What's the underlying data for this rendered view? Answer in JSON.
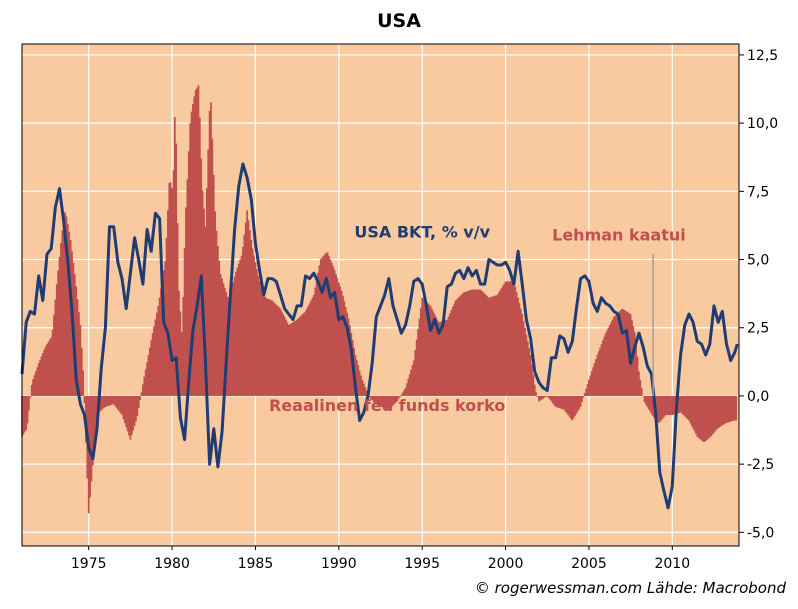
{
  "title": "USA",
  "copyright": "© rogerwessman.com Lähde: Macrobond",
  "chart_data": {
    "type": "bar+line",
    "title": "USA",
    "x_range": [
      1971,
      2014
    ],
    "ylim": [
      -5.5,
      12.9
    ],
    "x_ticks": [
      {
        "value": 1975,
        "label": "1975"
      },
      {
        "value": 1980,
        "label": "1980"
      },
      {
        "value": 1985,
        "label": "1985"
      },
      {
        "value": 1990,
        "label": "1990"
      },
      {
        "value": 1995,
        "label": "1995"
      },
      {
        "value": 2000,
        "label": "2000"
      },
      {
        "value": 2005,
        "label": "2005"
      },
      {
        "value": 2010,
        "label": "2010"
      }
    ],
    "y_ticks": [
      {
        "value": 12.5,
        "label": "12,5"
      },
      {
        "value": 10,
        "label": "10,0"
      },
      {
        "value": 7.5,
        "label": "7,5"
      },
      {
        "value": 5,
        "label": "5,0"
      },
      {
        "value": 2.5,
        "label": "2,5"
      },
      {
        "value": 0,
        "label": "0,0"
      },
      {
        "value": -2.5,
        "label": "-2,5"
      },
      {
        "value": -5,
        "label": "-5,0"
      }
    ],
    "background_color": "#F9C9A0",
    "bar_color": "#C0504D",
    "line_color": "#1F3D73",
    "series": [
      {
        "name": "Reaalinen fed funds korko",
        "kind": "area-bars",
        "points": [
          [
            1971.0,
            -1.5
          ],
          [
            1971.3,
            -1.2
          ],
          [
            1971.6,
            0.5
          ],
          [
            1972.0,
            1.2
          ],
          [
            1972.4,
            1.8
          ],
          [
            1972.8,
            2.2
          ],
          [
            1973.1,
            4.2
          ],
          [
            1973.4,
            6.0
          ],
          [
            1973.6,
            6.8
          ],
          [
            1973.9,
            5.8
          ],
          [
            1974.2,
            4.3
          ],
          [
            1974.5,
            2.6
          ],
          [
            1974.7,
            0.6
          ],
          [
            1974.85,
            -2.0
          ],
          [
            1975.0,
            -4.3
          ],
          [
            1975.3,
            -2.2
          ],
          [
            1975.6,
            -0.6
          ],
          [
            1976.0,
            -0.4
          ],
          [
            1976.5,
            -0.3
          ],
          [
            1977.0,
            -0.7
          ],
          [
            1977.5,
            -1.6
          ],
          [
            1977.9,
            -0.8
          ],
          [
            1978.3,
            0.6
          ],
          [
            1978.8,
            2.2
          ],
          [
            1979.2,
            3.4
          ],
          [
            1979.6,
            5.0
          ],
          [
            1979.85,
            8.0
          ],
          [
            1980.05,
            7.5
          ],
          [
            1980.2,
            11.0
          ],
          [
            1980.4,
            4.0
          ],
          [
            1980.6,
            2.2
          ],
          [
            1980.8,
            6.5
          ],
          [
            1981.1,
            10.2
          ],
          [
            1981.4,
            11.2
          ],
          [
            1981.6,
            11.4
          ],
          [
            1981.8,
            7.8
          ],
          [
            1982.0,
            6.2
          ],
          [
            1982.3,
            11.3
          ],
          [
            1982.6,
            6.5
          ],
          [
            1982.9,
            4.5
          ],
          [
            1983.4,
            3.5
          ],
          [
            1983.8,
            4.5
          ],
          [
            1984.2,
            5.2
          ],
          [
            1984.5,
            6.8
          ],
          [
            1984.8,
            5.5
          ],
          [
            1985.2,
            4.3
          ],
          [
            1985.6,
            3.6
          ],
          [
            1986.0,
            3.5
          ],
          [
            1986.5,
            3.2
          ],
          [
            1987.0,
            2.6
          ],
          [
            1987.5,
            2.8
          ],
          [
            1988.0,
            3.1
          ],
          [
            1988.5,
            3.7
          ],
          [
            1988.9,
            5.0
          ],
          [
            1989.3,
            5.3
          ],
          [
            1989.7,
            4.7
          ],
          [
            1990.2,
            3.8
          ],
          [
            1990.6,
            2.8
          ],
          [
            1991.0,
            1.5
          ],
          [
            1991.4,
            0.6
          ],
          [
            1991.8,
            0.0
          ],
          [
            1992.2,
            -0.3
          ],
          [
            1992.6,
            -0.4
          ],
          [
            1993.0,
            -0.5
          ],
          [
            1993.5,
            -0.2
          ],
          [
            1994.0,
            0.3
          ],
          [
            1994.5,
            1.3
          ],
          [
            1995.0,
            3.6
          ],
          [
            1995.5,
            3.3
          ],
          [
            1996.0,
            2.7
          ],
          [
            1996.5,
            2.8
          ],
          [
            1997.0,
            3.5
          ],
          [
            1997.5,
            3.8
          ],
          [
            1998.0,
            3.9
          ],
          [
            1998.5,
            3.9
          ],
          [
            1999.0,
            3.6
          ],
          [
            1999.5,
            3.7
          ],
          [
            2000.0,
            4.2
          ],
          [
            2000.5,
            4.2
          ],
          [
            2001.0,
            3.0
          ],
          [
            2001.5,
            1.5
          ],
          [
            2001.8,
            0.2
          ],
          [
            2002.0,
            -0.2
          ],
          [
            2002.5,
            0.0
          ],
          [
            2003.0,
            -0.4
          ],
          [
            2003.5,
            -0.5
          ],
          [
            2004.0,
            -0.9
          ],
          [
            2004.5,
            -0.4
          ],
          [
            2005.0,
            0.6
          ],
          [
            2005.5,
            1.5
          ],
          [
            2006.0,
            2.3
          ],
          [
            2006.5,
            2.9
          ],
          [
            2007.0,
            3.2
          ],
          [
            2007.5,
            3.0
          ],
          [
            2007.8,
            2.2
          ],
          [
            2008.0,
            0.9
          ],
          [
            2008.3,
            -0.2
          ],
          [
            2008.6,
            -0.5
          ],
          [
            2008.9,
            -0.8
          ],
          [
            2009.2,
            -1.0
          ],
          [
            2009.6,
            -0.7
          ],
          [
            2010.0,
            -0.7
          ],
          [
            2010.5,
            -0.6
          ],
          [
            2011.0,
            -0.9
          ],
          [
            2011.5,
            -1.5
          ],
          [
            2011.9,
            -1.7
          ],
          [
            2012.3,
            -1.5
          ],
          [
            2012.7,
            -1.2
          ],
          [
            2013.2,
            -1.0
          ],
          [
            2013.7,
            -0.9
          ],
          [
            2013.9,
            -0.9
          ]
        ]
      },
      {
        "name": "USA BKT, % v/v",
        "kind": "line",
        "points": [
          [
            1971.0,
            0.8
          ],
          [
            1971.25,
            2.7
          ],
          [
            1971.5,
            3.1
          ],
          [
            1971.75,
            3.0
          ],
          [
            1972.0,
            4.4
          ],
          [
            1972.25,
            3.5
          ],
          [
            1972.5,
            5.2
          ],
          [
            1972.75,
            5.4
          ],
          [
            1973.0,
            6.9
          ],
          [
            1973.25,
            7.6
          ],
          [
            1973.5,
            6.4
          ],
          [
            1973.75,
            4.9
          ],
          [
            1974.0,
            3.1
          ],
          [
            1974.25,
            0.6
          ],
          [
            1974.5,
            -0.3
          ],
          [
            1974.75,
            -0.7
          ],
          [
            1975.0,
            -1.9
          ],
          [
            1975.25,
            -2.3
          ],
          [
            1975.5,
            -1.2
          ],
          [
            1975.75,
            1.0
          ],
          [
            1976.0,
            2.5
          ],
          [
            1976.25,
            6.2
          ],
          [
            1976.5,
            6.2
          ],
          [
            1976.75,
            4.9
          ],
          [
            1977.0,
            4.3
          ],
          [
            1977.25,
            3.2
          ],
          [
            1977.5,
            4.5
          ],
          [
            1977.75,
            5.8
          ],
          [
            1978.0,
            5.0
          ],
          [
            1978.25,
            4.1
          ],
          [
            1978.5,
            6.1
          ],
          [
            1978.75,
            5.3
          ],
          [
            1979.0,
            6.7
          ],
          [
            1979.25,
            6.5
          ],
          [
            1979.5,
            2.7
          ],
          [
            1979.75,
            2.3
          ],
          [
            1980.0,
            1.3
          ],
          [
            1980.25,
            1.4
          ],
          [
            1980.5,
            -0.8
          ],
          [
            1980.75,
            -1.6
          ],
          [
            1981.0,
            0.5
          ],
          [
            1981.25,
            2.4
          ],
          [
            1981.5,
            3.3
          ],
          [
            1981.75,
            4.4
          ],
          [
            1982.0,
            1.3
          ],
          [
            1982.25,
            -2.5
          ],
          [
            1982.5,
            -1.2
          ],
          [
            1982.75,
            -2.6
          ],
          [
            1983.0,
            -1.3
          ],
          [
            1983.25,
            1.3
          ],
          [
            1983.5,
            3.7
          ],
          [
            1983.75,
            6.1
          ],
          [
            1984.0,
            7.7
          ],
          [
            1984.25,
            8.5
          ],
          [
            1984.5,
            8.0
          ],
          [
            1984.75,
            7.2
          ],
          [
            1985.0,
            5.6
          ],
          [
            1985.25,
            4.6
          ],
          [
            1985.5,
            3.7
          ],
          [
            1985.75,
            4.3
          ],
          [
            1986.0,
            4.3
          ],
          [
            1986.25,
            4.2
          ],
          [
            1986.5,
            3.7
          ],
          [
            1986.75,
            3.2
          ],
          [
            1987.0,
            3.0
          ],
          [
            1987.25,
            2.8
          ],
          [
            1987.5,
            3.3
          ],
          [
            1987.75,
            3.3
          ],
          [
            1988.0,
            4.4
          ],
          [
            1988.25,
            4.3
          ],
          [
            1988.5,
            4.5
          ],
          [
            1988.75,
            4.2
          ],
          [
            1989.0,
            3.8
          ],
          [
            1989.25,
            4.3
          ],
          [
            1989.5,
            3.6
          ],
          [
            1989.75,
            3.8
          ],
          [
            1990.0,
            2.8
          ],
          [
            1990.25,
            2.9
          ],
          [
            1990.5,
            2.5
          ],
          [
            1990.75,
            1.7
          ],
          [
            1991.0,
            0.3
          ],
          [
            1991.25,
            -0.9
          ],
          [
            1991.5,
            -0.6
          ],
          [
            1991.75,
            0.0
          ],
          [
            1992.0,
            1.2
          ],
          [
            1992.25,
            2.9
          ],
          [
            1992.5,
            3.3
          ],
          [
            1992.75,
            3.7
          ],
          [
            1993.0,
            4.3
          ],
          [
            1993.25,
            3.3
          ],
          [
            1993.5,
            2.8
          ],
          [
            1993.75,
            2.3
          ],
          [
            1994.0,
            2.6
          ],
          [
            1994.25,
            3.3
          ],
          [
            1994.5,
            4.2
          ],
          [
            1994.75,
            4.3
          ],
          [
            1995.0,
            4.1
          ],
          [
            1995.25,
            3.3
          ],
          [
            1995.5,
            2.4
          ],
          [
            1995.75,
            2.8
          ],
          [
            1996.0,
            2.3
          ],
          [
            1996.25,
            2.6
          ],
          [
            1996.5,
            4.0
          ],
          [
            1996.75,
            4.1
          ],
          [
            1997.0,
            4.5
          ],
          [
            1997.25,
            4.6
          ],
          [
            1997.5,
            4.3
          ],
          [
            1997.75,
            4.7
          ],
          [
            1998.0,
            4.4
          ],
          [
            1998.25,
            4.6
          ],
          [
            1998.5,
            4.1
          ],
          [
            1998.75,
            4.1
          ],
          [
            1999.0,
            5.0
          ],
          [
            1999.25,
            4.9
          ],
          [
            1999.5,
            4.8
          ],
          [
            1999.75,
            4.8
          ],
          [
            2000.0,
            4.9
          ],
          [
            2000.25,
            4.6
          ],
          [
            2000.5,
            4.1
          ],
          [
            2000.75,
            5.3
          ],
          [
            2001.0,
            4.1
          ],
          [
            2001.25,
            2.8
          ],
          [
            2001.5,
            2.1
          ],
          [
            2001.75,
            0.9
          ],
          [
            2002.0,
            0.5
          ],
          [
            2002.25,
            0.3
          ],
          [
            2002.5,
            0.2
          ],
          [
            2002.75,
            1.4
          ],
          [
            2003.0,
            1.4
          ],
          [
            2003.25,
            2.2
          ],
          [
            2003.5,
            2.1
          ],
          [
            2003.75,
            1.6
          ],
          [
            2004.0,
            2.0
          ],
          [
            2004.25,
            3.2
          ],
          [
            2004.5,
            4.3
          ],
          [
            2004.75,
            4.4
          ],
          [
            2005.0,
            4.2
          ],
          [
            2005.25,
            3.4
          ],
          [
            2005.5,
            3.1
          ],
          [
            2005.75,
            3.6
          ],
          [
            2006.0,
            3.4
          ],
          [
            2006.25,
            3.3
          ],
          [
            2006.5,
            3.1
          ],
          [
            2006.75,
            3.0
          ],
          [
            2007.0,
            2.3
          ],
          [
            2007.25,
            2.4
          ],
          [
            2007.5,
            1.2
          ],
          [
            2007.75,
            1.8
          ],
          [
            2008.0,
            2.3
          ],
          [
            2008.25,
            1.8
          ],
          [
            2008.5,
            1.1
          ],
          [
            2008.75,
            0.8
          ],
          [
            2009.0,
            -0.6
          ],
          [
            2009.25,
            -2.8
          ],
          [
            2009.5,
            -3.5
          ],
          [
            2009.75,
            -4.1
          ],
          [
            2010.0,
            -3.3
          ],
          [
            2010.25,
            -0.4
          ],
          [
            2010.5,
            1.5
          ],
          [
            2010.75,
            2.6
          ],
          [
            2011.0,
            3.0
          ],
          [
            2011.25,
            2.7
          ],
          [
            2011.5,
            2.0
          ],
          [
            2011.75,
            1.9
          ],
          [
            2012.0,
            1.5
          ],
          [
            2012.25,
            1.9
          ],
          [
            2012.5,
            3.3
          ],
          [
            2012.75,
            2.7
          ],
          [
            2013.0,
            3.1
          ],
          [
            2013.25,
            1.9
          ],
          [
            2013.5,
            1.3
          ],
          [
            2013.75,
            1.6
          ],
          [
            2013.9,
            1.9
          ]
        ]
      }
    ],
    "annotations": [
      {
        "id": "gdp",
        "text": "USA BKT, % v/v",
        "x": 1995.0,
        "y": 5.8,
        "color": "#1F3D73"
      },
      {
        "id": "fed",
        "text": "Reaalinen fed funds korko",
        "x": 1992.9,
        "y": -0.55,
        "color": "#C0504D"
      },
      {
        "id": "lehman",
        "text": "Lehman kaatui",
        "x": 2006.8,
        "y": 5.7,
        "color": "#C0504D"
      }
    ],
    "event_marker": {
      "label": "Lehman kaatui",
      "x": 2008.85,
      "y_from": 5.2,
      "y_to": 0.0
    }
  }
}
